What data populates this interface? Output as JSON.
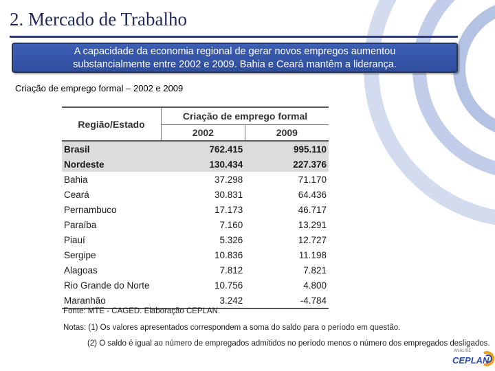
{
  "title": "2. Mercado de Trabalho",
  "callout": {
    "line1": "A capacidade da economia regional de  gerar novos empregos aumentou",
    "line2": "substancialmente entre 2002 e 2009. Bahia e Ceará mantêm a liderança."
  },
  "subtitle": "Criação de emprego formal – 2002 e 2009",
  "table": {
    "header_region": "Região/Estado",
    "header_group": "Criação de emprego formal",
    "year1": "2002",
    "year2": "2009",
    "rows": [
      {
        "name": "Brasil",
        "v2002": "762.415",
        "v2009": "995.110"
      },
      {
        "name": "Nordeste",
        "v2002": "130.434",
        "v2009": "227.376"
      },
      {
        "name": "Bahia",
        "v2002": "37.298",
        "v2009": "71.170"
      },
      {
        "name": "Ceará",
        "v2002": "30.831",
        "v2009": "64.436"
      },
      {
        "name": "Pernambuco",
        "v2002": "17.173",
        "v2009": "46.717"
      },
      {
        "name": "Paraíba",
        "v2002": "7.160",
        "v2009": "13.291"
      },
      {
        "name": "Piauí",
        "v2002": "5.326",
        "v2009": "12.727"
      },
      {
        "name": "Sergipe",
        "v2002": "10.836",
        "v2009": "11.198"
      },
      {
        "name": "Alagoas",
        "v2002": "7.812",
        "v2009": "7.821"
      },
      {
        "name": "Rio Grande do Norte",
        "v2002": "10.756",
        "v2009": "4.800"
      },
      {
        "name": "Maranhão",
        "v2002": "3.242",
        "v2009": "-4.784"
      }
    ]
  },
  "source": "Fonte: MTE - CAGED. Elaboração CEPLAN.",
  "note1": "Notas: (1) Os valores apresentados correspondem a soma do saldo para o período em questão.",
  "note2": "(2) O saldo é igual ao número de empregados admitidos no período menos o número dos empregados desligados.",
  "logo": {
    "small": "ANÁLISE",
    "main": "CEPLAN"
  },
  "colors": {
    "title": "#1f2a5c",
    "callout_bg": "#3557aa",
    "deco_ring": "#b4c3e3",
    "highlight_row": "#dcdcdc",
    "logo_accent": "#f0a020"
  }
}
